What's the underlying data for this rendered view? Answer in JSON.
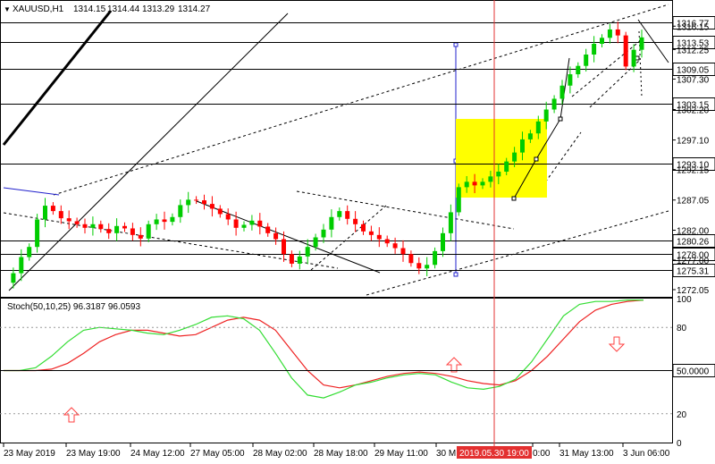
{
  "main": {
    "symbol_label": "XAUUSD,H1",
    "ohlc": [
      "1314.15",
      "1314.44",
      "1313.29",
      "1314.27"
    ],
    "ylim": [
      1270.85,
      1320.53
    ],
    "y_ticks": [
      1316.15,
      1312.25,
      1307.3,
      1302.2,
      1297.1,
      1292.15,
      1287.05,
      1282.0,
      1277.0,
      1272.05
    ],
    "y_tick_labels": [
      "1316.15",
      "1312.25",
      "1307.30",
      "1302.20",
      "1297.10",
      "1292.15",
      "1287.05",
      "1282.00",
      "1277.00",
      "1272.05"
    ],
    "levels": [
      {
        "price": 1316.77,
        "label": "1316.77",
        "current": true
      },
      {
        "price": 1313.53,
        "label": "1313.53"
      },
      {
        "price": 1309.05,
        "label": "1309.05"
      },
      {
        "price": 1303.15,
        "label": "1303.15"
      },
      {
        "price": 1293.1,
        "label": "1293.10"
      },
      {
        "price": 1280.26,
        "label": "1280.26"
      },
      {
        "price": 1278.0,
        "label": "1278.00"
      },
      {
        "price": 1275.31,
        "label": "1275.31"
      }
    ],
    "close_path": [
      1273.2,
      1274.8,
      1277.5,
      1279.2,
      1283.8,
      1286.1,
      1285.2,
      1284.0,
      1283.5,
      1283.0,
      1282.4,
      1283.0,
      1282.2,
      1281.5,
      1282.7,
      1282.3,
      1281.2,
      1280.6,
      1283.0,
      1283.8,
      1283.4,
      1284.2,
      1286.2,
      1287.1,
      1287.0,
      1286.4,
      1285.6,
      1284.7,
      1283.8,
      1282.4,
      1282.9,
      1283.6,
      1282.6,
      1281.5,
      1280.5,
      1278.0,
      1276.4,
      1277.6,
      1279.2,
      1280.8,
      1282.1,
      1284.2,
      1285.2,
      1283.9,
      1283.0,
      1281.8,
      1281.2,
      1280.5,
      1279.8,
      1279.0,
      1278.0,
      1276.5,
      1275.6,
      1276.2,
      1278.5,
      1281.5,
      1285.0,
      1289.2,
      1290.1,
      1289.5,
      1290.1,
      1291.0,
      1291.8,
      1293.5,
      1295.0,
      1297.2,
      1298.2,
      1300.2,
      1302.2,
      1304.0,
      1306.2,
      1308.1,
      1309.5,
      1311.4,
      1313.2,
      1314.2,
      1315.6,
      1314.6,
      1309.4,
      1312.2,
      1314.27
    ],
    "price_line": 1314.27
  },
  "stoch": {
    "label": "Stoch(50,10,25) 96.3187 96.0593",
    "ylim": [
      0,
      100
    ],
    "y_ticks": [
      100,
      80,
      50,
      20,
      0
    ],
    "y_tick_labels": [
      "100",
      "80",
      "50.0000",
      "20",
      "0"
    ],
    "main_values": [
      50,
      50,
      52,
      60,
      70,
      78,
      80,
      79,
      78,
      76,
      75,
      78,
      82,
      87,
      88,
      86,
      78,
      62,
      45,
      33,
      31,
      35,
      40,
      42,
      45,
      47,
      48,
      47,
      42,
      38,
      37,
      39,
      44,
      56,
      72,
      88,
      96,
      98,
      98,
      99,
      99
    ],
    "signal_values": [
      50,
      50,
      50,
      51,
      55,
      62,
      70,
      75,
      78,
      78,
      76,
      74,
      75,
      80,
      85,
      87,
      85,
      78,
      64,
      50,
      40,
      38,
      40,
      43,
      46,
      48,
      49,
      48,
      46,
      43,
      41,
      40,
      43,
      50,
      60,
      72,
      84,
      92,
      96,
      98,
      99
    ]
  },
  "x_tick_labels": [
    "23 May 2019",
    "23 May 19:00",
    "24 May 12:00",
    "27 May 05:00",
    "28 May 02:00",
    "28 May 18:00",
    "29 May 11:00",
    "30 M",
    "2019.05.30 19:00",
    "0:00",
    "31 May 13:00",
    "3 Jun 06:00"
  ],
  "colors": {
    "up": "#00cc00",
    "down": "#ff0000",
    "stoch_main": "#33dd33",
    "stoch_signal": "#ee2222",
    "zone": "#ffff00",
    "marker": "#ff4040",
    "vline": "#e33030",
    "projection": "#2020cc"
  }
}
